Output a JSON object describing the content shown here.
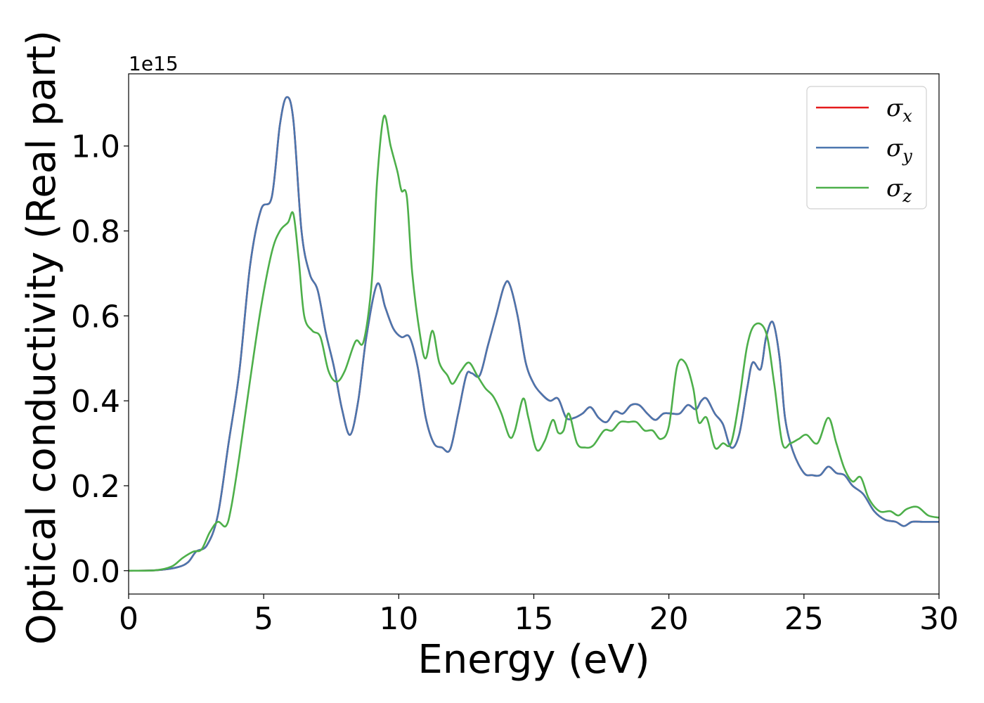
{
  "chart_data": {
    "type": "line",
    "xlabel": "Energy (eV)",
    "ylabel": "Optical conductivity (Real part)",
    "y_offset_text": "1e15",
    "xlim": [
      0,
      30
    ],
    "ylim": [
      -0.055,
      1.17
    ],
    "x_ticks": [
      0,
      5,
      10,
      15,
      20,
      25,
      30
    ],
    "x_tick_labels": [
      "0",
      "5",
      "10",
      "15",
      "20",
      "25",
      "30"
    ],
    "y_ticks": [
      0.0,
      0.2,
      0.4,
      0.6,
      0.8,
      1.0
    ],
    "y_tick_labels": [
      "0.0",
      "0.2",
      "0.4",
      "0.6",
      "0.8",
      "1.0"
    ],
    "grid": false,
    "legend_position": "top-right",
    "series": [
      {
        "name": "σx",
        "color": "#e41a1c",
        "points": [
          [
            0,
            0
          ],
          [
            1,
            0.001
          ],
          [
            1.8,
            0.008
          ],
          [
            2.2,
            0.02
          ],
          [
            2.5,
            0.045
          ],
          [
            2.9,
            0.06
          ],
          [
            3.3,
            0.13
          ],
          [
            3.7,
            0.3
          ],
          [
            4.1,
            0.47
          ],
          [
            4.5,
            0.72
          ],
          [
            4.9,
            0.85
          ],
          [
            5.3,
            0.88
          ],
          [
            5.6,
            1.05
          ],
          [
            5.85,
            1.115
          ],
          [
            6.1,
            1.06
          ],
          [
            6.4,
            0.8
          ],
          [
            6.7,
            0.7
          ],
          [
            7.0,
            0.66
          ],
          [
            7.3,
            0.56
          ],
          [
            7.6,
            0.48
          ],
          [
            7.9,
            0.38
          ],
          [
            8.2,
            0.32
          ],
          [
            8.5,
            0.4
          ],
          [
            8.8,
            0.55
          ],
          [
            9.2,
            0.675
          ],
          [
            9.5,
            0.62
          ],
          [
            9.8,
            0.57
          ],
          [
            10.1,
            0.55
          ],
          [
            10.4,
            0.55
          ],
          [
            10.7,
            0.48
          ],
          [
            11.0,
            0.36
          ],
          [
            11.3,
            0.3
          ],
          [
            11.6,
            0.29
          ],
          [
            11.9,
            0.285
          ],
          [
            12.2,
            0.37
          ],
          [
            12.5,
            0.46
          ],
          [
            12.7,
            0.465
          ],
          [
            13.0,
            0.46
          ],
          [
            13.3,
            0.53
          ],
          [
            13.6,
            0.6
          ],
          [
            13.9,
            0.67
          ],
          [
            14.1,
            0.675
          ],
          [
            14.4,
            0.6
          ],
          [
            14.7,
            0.49
          ],
          [
            15.0,
            0.44
          ],
          [
            15.3,
            0.415
          ],
          [
            15.6,
            0.4
          ],
          [
            15.9,
            0.405
          ],
          [
            16.2,
            0.36
          ],
          [
            16.5,
            0.36
          ],
          [
            16.8,
            0.37
          ],
          [
            17.1,
            0.385
          ],
          [
            17.4,
            0.36
          ],
          [
            17.7,
            0.35
          ],
          [
            18.0,
            0.375
          ],
          [
            18.3,
            0.37
          ],
          [
            18.6,
            0.39
          ],
          [
            18.9,
            0.39
          ],
          [
            19.2,
            0.37
          ],
          [
            19.5,
            0.355
          ],
          [
            19.8,
            0.37
          ],
          [
            20.1,
            0.37
          ],
          [
            20.4,
            0.37
          ],
          [
            20.7,
            0.39
          ],
          [
            21.0,
            0.38
          ],
          [
            21.2,
            0.4
          ],
          [
            21.4,
            0.405
          ],
          [
            21.7,
            0.37
          ],
          [
            22.0,
            0.345
          ],
          [
            22.3,
            0.29
          ],
          [
            22.6,
            0.32
          ],
          [
            22.9,
            0.43
          ],
          [
            23.1,
            0.49
          ],
          [
            23.4,
            0.475
          ],
          [
            23.6,
            0.55
          ],
          [
            23.85,
            0.585
          ],
          [
            24.1,
            0.5
          ],
          [
            24.3,
            0.36
          ],
          [
            24.6,
            0.28
          ],
          [
            25.0,
            0.23
          ],
          [
            25.3,
            0.225
          ],
          [
            25.6,
            0.225
          ],
          [
            25.9,
            0.245
          ],
          [
            26.2,
            0.23
          ],
          [
            26.5,
            0.225
          ],
          [
            26.8,
            0.2
          ],
          [
            27.2,
            0.18
          ],
          [
            27.6,
            0.14
          ],
          [
            28.0,
            0.12
          ],
          [
            28.4,
            0.115
          ],
          [
            28.7,
            0.105
          ],
          [
            29.0,
            0.115
          ],
          [
            29.4,
            0.115
          ],
          [
            30.0,
            0.115
          ]
        ]
      },
      {
        "name": "σy",
        "color": "#4a76ae",
        "points": [
          [
            0,
            0
          ],
          [
            1,
            0.001
          ],
          [
            1.8,
            0.008
          ],
          [
            2.2,
            0.02
          ],
          [
            2.5,
            0.045
          ],
          [
            2.9,
            0.06
          ],
          [
            3.3,
            0.13
          ],
          [
            3.7,
            0.3
          ],
          [
            4.1,
            0.47
          ],
          [
            4.5,
            0.72
          ],
          [
            4.9,
            0.85
          ],
          [
            5.3,
            0.88
          ],
          [
            5.6,
            1.05
          ],
          [
            5.85,
            1.115
          ],
          [
            6.1,
            1.06
          ],
          [
            6.4,
            0.8
          ],
          [
            6.7,
            0.7
          ],
          [
            7.0,
            0.66
          ],
          [
            7.3,
            0.56
          ],
          [
            7.6,
            0.48
          ],
          [
            7.9,
            0.38
          ],
          [
            8.2,
            0.32
          ],
          [
            8.5,
            0.4
          ],
          [
            8.8,
            0.55
          ],
          [
            9.2,
            0.675
          ],
          [
            9.5,
            0.62
          ],
          [
            9.8,
            0.57
          ],
          [
            10.1,
            0.55
          ],
          [
            10.4,
            0.55
          ],
          [
            10.7,
            0.48
          ],
          [
            11.0,
            0.36
          ],
          [
            11.3,
            0.3
          ],
          [
            11.6,
            0.29
          ],
          [
            11.9,
            0.285
          ],
          [
            12.2,
            0.37
          ],
          [
            12.5,
            0.46
          ],
          [
            12.7,
            0.465
          ],
          [
            13.0,
            0.46
          ],
          [
            13.3,
            0.53
          ],
          [
            13.6,
            0.6
          ],
          [
            13.9,
            0.67
          ],
          [
            14.1,
            0.675
          ],
          [
            14.4,
            0.6
          ],
          [
            14.7,
            0.49
          ],
          [
            15.0,
            0.44
          ],
          [
            15.3,
            0.415
          ],
          [
            15.6,
            0.4
          ],
          [
            15.9,
            0.405
          ],
          [
            16.2,
            0.36
          ],
          [
            16.5,
            0.36
          ],
          [
            16.8,
            0.37
          ],
          [
            17.1,
            0.385
          ],
          [
            17.4,
            0.36
          ],
          [
            17.7,
            0.35
          ],
          [
            18.0,
            0.375
          ],
          [
            18.3,
            0.37
          ],
          [
            18.6,
            0.39
          ],
          [
            18.9,
            0.39
          ],
          [
            19.2,
            0.37
          ],
          [
            19.5,
            0.355
          ],
          [
            19.8,
            0.37
          ],
          [
            20.1,
            0.37
          ],
          [
            20.4,
            0.37
          ],
          [
            20.7,
            0.39
          ],
          [
            21.0,
            0.38
          ],
          [
            21.2,
            0.4
          ],
          [
            21.4,
            0.405
          ],
          [
            21.7,
            0.37
          ],
          [
            22.0,
            0.345
          ],
          [
            22.3,
            0.29
          ],
          [
            22.6,
            0.32
          ],
          [
            22.9,
            0.43
          ],
          [
            23.1,
            0.49
          ],
          [
            23.4,
            0.475
          ],
          [
            23.6,
            0.55
          ],
          [
            23.85,
            0.585
          ],
          [
            24.1,
            0.5
          ],
          [
            24.3,
            0.36
          ],
          [
            24.6,
            0.28
          ],
          [
            25.0,
            0.23
          ],
          [
            25.3,
            0.225
          ],
          [
            25.6,
            0.225
          ],
          [
            25.9,
            0.245
          ],
          [
            26.2,
            0.23
          ],
          [
            26.5,
            0.225
          ],
          [
            26.8,
            0.2
          ],
          [
            27.2,
            0.18
          ],
          [
            27.6,
            0.14
          ],
          [
            28.0,
            0.12
          ],
          [
            28.4,
            0.115
          ],
          [
            28.7,
            0.105
          ],
          [
            29.0,
            0.115
          ],
          [
            29.4,
            0.115
          ],
          [
            30.0,
            0.115
          ]
        ]
      },
      {
        "name": "σz",
        "color": "#4daf4a",
        "points": [
          [
            0,
            0
          ],
          [
            1,
            0.001
          ],
          [
            1.6,
            0.01
          ],
          [
            2.0,
            0.03
          ],
          [
            2.4,
            0.045
          ],
          [
            2.7,
            0.05
          ],
          [
            3.0,
            0.09
          ],
          [
            3.3,
            0.115
          ],
          [
            3.6,
            0.105
          ],
          [
            3.8,
            0.15
          ],
          [
            4.1,
            0.27
          ],
          [
            4.5,
            0.45
          ],
          [
            4.9,
            0.62
          ],
          [
            5.3,
            0.75
          ],
          [
            5.6,
            0.8
          ],
          [
            5.9,
            0.82
          ],
          [
            6.1,
            0.84
          ],
          [
            6.3,
            0.73
          ],
          [
            6.5,
            0.6
          ],
          [
            6.8,
            0.565
          ],
          [
            7.1,
            0.55
          ],
          [
            7.4,
            0.47
          ],
          [
            7.7,
            0.445
          ],
          [
            8.0,
            0.47
          ],
          [
            8.4,
            0.54
          ],
          [
            8.7,
            0.54
          ],
          [
            9.0,
            0.68
          ],
          [
            9.2,
            0.92
          ],
          [
            9.45,
            1.07
          ],
          [
            9.7,
            1.0
          ],
          [
            9.95,
            0.94
          ],
          [
            10.1,
            0.895
          ],
          [
            10.3,
            0.88
          ],
          [
            10.5,
            0.7
          ],
          [
            10.8,
            0.55
          ],
          [
            11.0,
            0.5
          ],
          [
            11.25,
            0.565
          ],
          [
            11.5,
            0.49
          ],
          [
            11.8,
            0.46
          ],
          [
            12.0,
            0.44
          ],
          [
            12.3,
            0.47
          ],
          [
            12.6,
            0.49
          ],
          [
            12.9,
            0.46
          ],
          [
            13.2,
            0.43
          ],
          [
            13.5,
            0.41
          ],
          [
            13.8,
            0.37
          ],
          [
            14.1,
            0.315
          ],
          [
            14.3,
            0.33
          ],
          [
            14.6,
            0.405
          ],
          [
            14.8,
            0.36
          ],
          [
            15.1,
            0.285
          ],
          [
            15.4,
            0.305
          ],
          [
            15.7,
            0.355
          ],
          [
            15.9,
            0.325
          ],
          [
            16.1,
            0.33
          ],
          [
            16.3,
            0.37
          ],
          [
            16.6,
            0.3
          ],
          [
            16.9,
            0.29
          ],
          [
            17.2,
            0.295
          ],
          [
            17.6,
            0.33
          ],
          [
            17.9,
            0.33
          ],
          [
            18.2,
            0.35
          ],
          [
            18.5,
            0.35
          ],
          [
            18.8,
            0.35
          ],
          [
            19.1,
            0.33
          ],
          [
            19.4,
            0.33
          ],
          [
            19.7,
            0.31
          ],
          [
            20.0,
            0.34
          ],
          [
            20.3,
            0.48
          ],
          [
            20.6,
            0.49
          ],
          [
            20.9,
            0.43
          ],
          [
            21.1,
            0.35
          ],
          [
            21.4,
            0.36
          ],
          [
            21.7,
            0.29
          ],
          [
            22.0,
            0.3
          ],
          [
            22.3,
            0.3
          ],
          [
            22.6,
            0.4
          ],
          [
            22.9,
            0.53
          ],
          [
            23.2,
            0.58
          ],
          [
            23.6,
            0.56
          ],
          [
            23.9,
            0.44
          ],
          [
            24.2,
            0.3
          ],
          [
            24.5,
            0.3
          ],
          [
            24.8,
            0.31
          ],
          [
            25.1,
            0.32
          ],
          [
            25.5,
            0.3
          ],
          [
            25.9,
            0.36
          ],
          [
            26.2,
            0.3
          ],
          [
            26.5,
            0.24
          ],
          [
            26.8,
            0.21
          ],
          [
            27.1,
            0.22
          ],
          [
            27.4,
            0.17
          ],
          [
            27.8,
            0.14
          ],
          [
            28.2,
            0.14
          ],
          [
            28.5,
            0.13
          ],
          [
            28.8,
            0.145
          ],
          [
            29.2,
            0.15
          ],
          [
            29.6,
            0.13
          ],
          [
            30.0,
            0.125
          ]
        ]
      }
    ]
  }
}
